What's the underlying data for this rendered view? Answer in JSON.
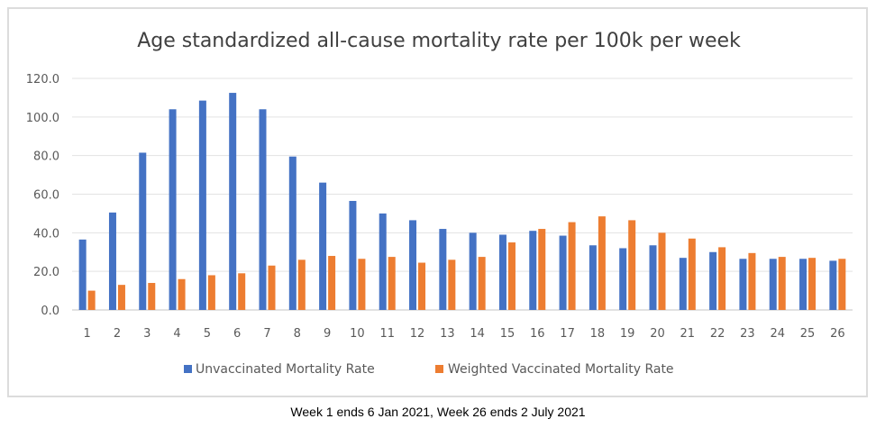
{
  "caption": "Week 1 ends 6 Jan 2021, Week 26 ends 2 July 2021",
  "chart_data": {
    "type": "bar",
    "title": "Age standardized all-cause mortality rate per 100k per week",
    "xlabel": "",
    "ylabel": "",
    "ylim": [
      0,
      120
    ],
    "yticks": [
      "0.0",
      "20.0",
      "40.0",
      "60.0",
      "80.0",
      "100.0",
      "120.0"
    ],
    "ytick_values": [
      0,
      20,
      40,
      60,
      80,
      100,
      120
    ],
    "grid": true,
    "legend_position": "bottom",
    "categories": [
      "1",
      "2",
      "3",
      "4",
      "5",
      "6",
      "7",
      "8",
      "9",
      "10",
      "11",
      "12",
      "13",
      "14",
      "15",
      "16",
      "17",
      "18",
      "19",
      "20",
      "21",
      "22",
      "23",
      "24",
      "25",
      "26"
    ],
    "series": [
      {
        "name": "Unvaccinated Mortality Rate",
        "color": "#4472C4",
        "values": [
          36.5,
          50.5,
          81.5,
          104.0,
          108.5,
          112.5,
          104.0,
          79.5,
          66.0,
          56.5,
          50.0,
          46.5,
          42.0,
          40.0,
          39.0,
          41.0,
          38.5,
          33.5,
          32.0,
          33.5,
          27.0,
          30.0,
          26.5,
          26.5,
          26.5,
          25.5
        ]
      },
      {
        "name": "Weighted Vaccinated Mortality Rate",
        "color": "#ED7D31",
        "values": [
          10.0,
          13.0,
          14.0,
          16.0,
          18.0,
          19.0,
          23.0,
          26.0,
          28.0,
          26.5,
          27.5,
          24.5,
          26.0,
          27.5,
          35.0,
          42.0,
          45.5,
          48.5,
          46.5,
          40.0,
          37.0,
          32.5,
          29.5,
          27.5,
          27.0,
          26.5
        ]
      }
    ]
  }
}
